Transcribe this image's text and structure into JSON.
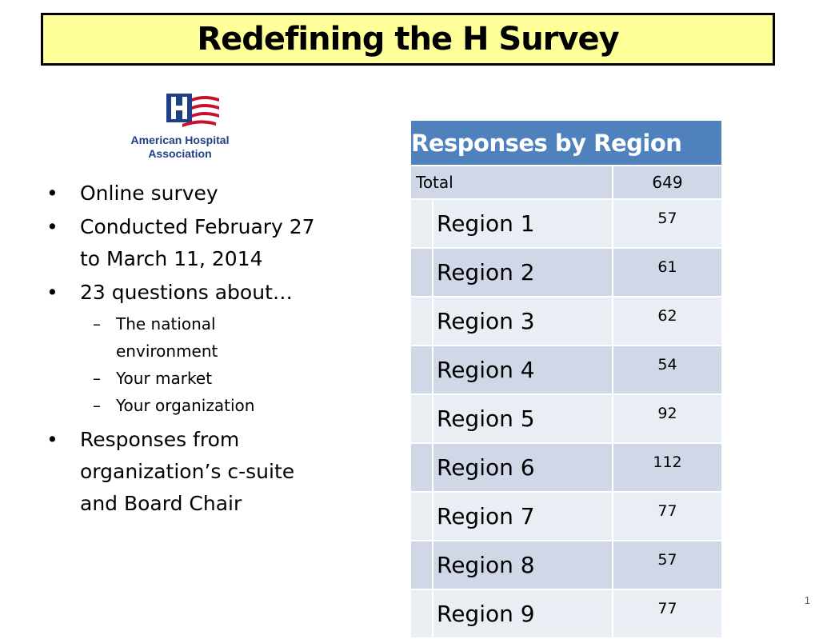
{
  "title": "Redefining the H Survey",
  "logo": {
    "icon": "aha-h-flag-icon",
    "line1": "American Hospital",
    "line2": "Association",
    "colors": {
      "blue": "#1f3f86",
      "red": "#c8102e"
    }
  },
  "bullets": [
    {
      "text": "Online survey"
    },
    {
      "text": "Conducted February 27 to March 11, 2014"
    },
    {
      "text": "23 questions about…",
      "sub": [
        "The national environment",
        "Your market",
        "Your organization"
      ]
    },
    {
      "text": "Responses from organization’s c-suite and Board Chair"
    }
  ],
  "bullet_glyph": "•",
  "sub_glyph": "–",
  "table": {
    "header": "Responses by Region",
    "total_label": "Total",
    "total_value": "649",
    "rows": [
      {
        "label": "Region 1",
        "value": "57"
      },
      {
        "label": "Region 2",
        "value": "61"
      },
      {
        "label": "Region 3",
        "value": "62"
      },
      {
        "label": "Region 4",
        "value": "54"
      },
      {
        "label": "Region 5",
        "value": "92"
      },
      {
        "label": "Region 6",
        "value": "112"
      },
      {
        "label": "Region 7",
        "value": "77"
      },
      {
        "label": "Region 8",
        "value": "57"
      },
      {
        "label": "Region 9",
        "value": "77"
      }
    ],
    "colors": {
      "header": "#4f81bd",
      "band_dark": "#d0d8e8",
      "band_light": "#e9edf4"
    }
  },
  "page_number": "1"
}
